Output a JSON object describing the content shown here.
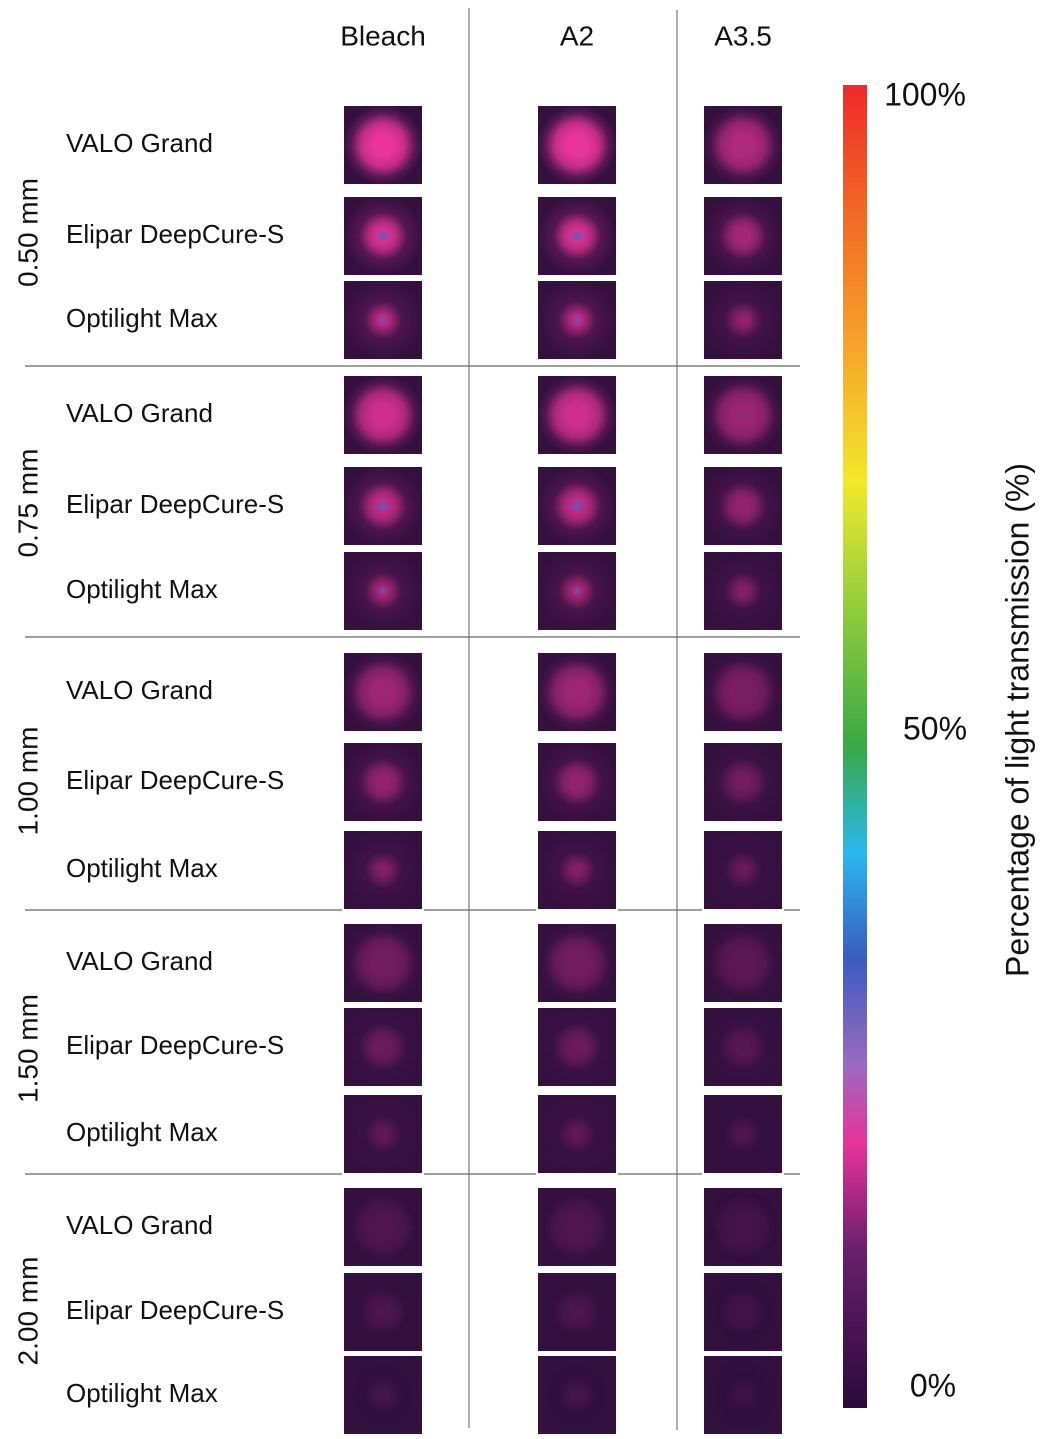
{
  "columns": [
    "Bleach",
    "A2",
    "A3.5"
  ],
  "groups": [
    {
      "label": "0.50 mm",
      "rows": [
        "VALO Grand",
        "Elipar DeepCure-S",
        "Optilight Max"
      ]
    },
    {
      "label": "0.75 mm",
      "rows": [
        "VALO Grand",
        "Elipar DeepCure-S",
        "Optilight Max"
      ]
    },
    {
      "label": "1.00 mm",
      "rows": [
        "VALO Grand",
        "Elipar DeepCure-S",
        "Optilight Max"
      ]
    },
    {
      "label": "1.50 mm",
      "rows": [
        "VALO Grand",
        "Elipar DeepCure-S",
        "Optilight Max"
      ]
    },
    {
      "label": "2.00 mm",
      "rows": [
        "VALO Grand",
        "Elipar DeepCure-S",
        "Optilight Max"
      ]
    }
  ],
  "colorbar": {
    "title": "Percentage of light transmission (%)",
    "labels": [
      "100%",
      "50%",
      "0%"
    ]
  }
}
